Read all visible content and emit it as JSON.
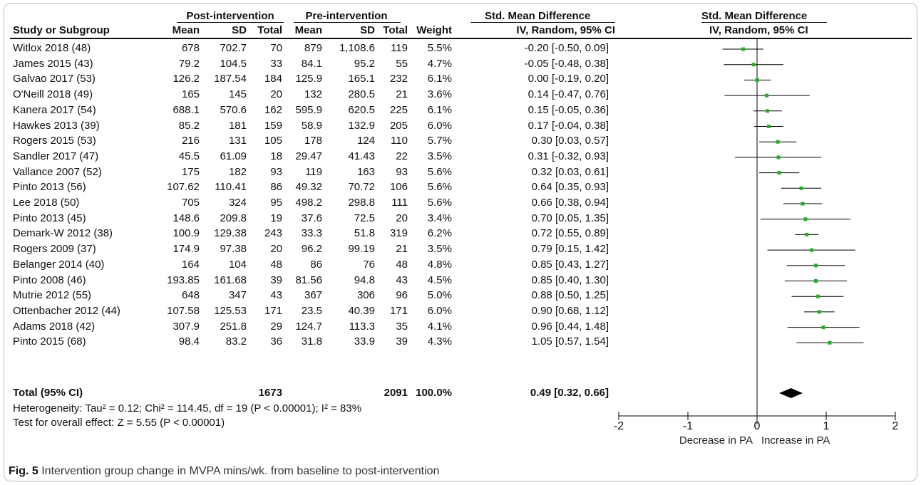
{
  "columns": {
    "post_group": "Post-intervention",
    "pre_group": "Pre-intervention",
    "smd_group": "Std. Mean Difference",
    "plot_group": "Std. Mean Difference",
    "study": "Study or Subgroup",
    "mean1": "Mean",
    "sd1": "SD",
    "total1": "Total",
    "mean2": "Mean",
    "sd2": "SD",
    "total2": "Total",
    "weight": "Weight",
    "ci": "IV, Random, 95% CI",
    "plot_ci": "IV, Random, 95% CI"
  },
  "rows": [
    {
      "study": "Witlox 2018 (48)",
      "mean1": "678",
      "sd1": "702.7",
      "n1": "70",
      "mean2": "879",
      "sd2": "1,108.6",
      "n2": "119",
      "weight": "5.5%",
      "ci": "-0.20 [-0.50, 0.09]"
    },
    {
      "study": "James 2015 (43)",
      "mean1": "79.2",
      "sd1": "104.5",
      "n1": "33",
      "mean2": "84.1",
      "sd2": "95.2",
      "n2": "55",
      "weight": "4.7%",
      "ci": "-0.05 [-0.48, 0.38]"
    },
    {
      "study": "Galvao 2017 (53)",
      "mean1": "126.2",
      "sd1": "187.54",
      "n1": "184",
      "mean2": "125.9",
      "sd2": "165.1",
      "n2": "232",
      "weight": "6.1%",
      "ci": "0.00 [-0.19, 0.20]"
    },
    {
      "study": "O'Neill 2018 (49)",
      "mean1": "165",
      "sd1": "145",
      "n1": "20",
      "mean2": "132",
      "sd2": "280.5",
      "n2": "21",
      "weight": "3.6%",
      "ci": "0.14 [-0.47, 0.76]"
    },
    {
      "study": "Kanera 2017 (54)",
      "mean1": "688.1",
      "sd1": "570.6",
      "n1": "162",
      "mean2": "595.9",
      "sd2": "620.5",
      "n2": "225",
      "weight": "6.1%",
      "ci": "0.15 [-0.05, 0.36]"
    },
    {
      "study": "Hawkes 2013 (39)",
      "mean1": "85.2",
      "sd1": "181",
      "n1": "159",
      "mean2": "58.9",
      "sd2": "132.9",
      "n2": "205",
      "weight": "6.0%",
      "ci": "0.17 [-0.04, 0.38]"
    },
    {
      "study": "Rogers 2015 (53)",
      "mean1": "216",
      "sd1": "131",
      "n1": "105",
      "mean2": "178",
      "sd2": "124",
      "n2": "110",
      "weight": "5.7%",
      "ci": "0.30 [0.03, 0.57]"
    },
    {
      "study": "Sandler 2017 (47)",
      "mean1": "45.5",
      "sd1": "61.09",
      "n1": "18",
      "mean2": "29.47",
      "sd2": "41.43",
      "n2": "22",
      "weight": "3.5%",
      "ci": "0.31 [-0.32, 0.93]"
    },
    {
      "study": "Vallance 2007 (52)",
      "mean1": "175",
      "sd1": "182",
      "n1": "93",
      "mean2": "119",
      "sd2": "163",
      "n2": "93",
      "weight": "5.6%",
      "ci": "0.32 [0.03, 0.61]"
    },
    {
      "study": "Pinto 2013 (56)",
      "mean1": "107.62",
      "sd1": "110.41",
      "n1": "86",
      "mean2": "49.32",
      "sd2": "70.72",
      "n2": "106",
      "weight": "5.6%",
      "ci": "0.64 [0.35, 0.93]"
    },
    {
      "study": "Lee 2018 (50)",
      "mean1": "705",
      "sd1": "324",
      "n1": "95",
      "mean2": "498.2",
      "sd2": "298.8",
      "n2": "111",
      "weight": "5.6%",
      "ci": "0.66 [0.38, 0.94]"
    },
    {
      "study": "Pinto 2013 (45)",
      "mean1": "148.6",
      "sd1": "209.8",
      "n1": "19",
      "mean2": "37.6",
      "sd2": "72.5",
      "n2": "20",
      "weight": "3.4%",
      "ci": "0.70 [0.05, 1.35]"
    },
    {
      "study": "Demark-W 2012 (38)",
      "mean1": "100.9",
      "sd1": "129.38",
      "n1": "243",
      "mean2": "33.3",
      "sd2": "51.8",
      "n2": "319",
      "weight": "6.2%",
      "ci": "0.72 [0.55, 0.89]"
    },
    {
      "study": "Rogers 2009 (37)",
      "mean1": "174.9",
      "sd1": "97.38",
      "n1": "20",
      "mean2": "96.2",
      "sd2": "99.19",
      "n2": "21",
      "weight": "3.5%",
      "ci": "0.79 [0.15, 1.42]"
    },
    {
      "study": "Belanger 2014 (40)",
      "mean1": "164",
      "sd1": "104",
      "n1": "48",
      "mean2": "86",
      "sd2": "76",
      "n2": "48",
      "weight": "4.8%",
      "ci": "0.85 [0.43, 1.27]"
    },
    {
      "study": "Pinto 2008 (46)",
      "mean1": "193.85",
      "sd1": "161.68",
      "n1": "39",
      "mean2": "81.56",
      "sd2": "94.8",
      "n2": "43",
      "weight": "4.5%",
      "ci": "0.85 [0.40, 1.30]"
    },
    {
      "study": "Mutrie 2012 (55)",
      "mean1": "648",
      "sd1": "347",
      "n1": "43",
      "mean2": "367",
      "sd2": "306",
      "n2": "96",
      "weight": "5.0%",
      "ci": "0.88 [0.50, 1.25]"
    },
    {
      "study": "Ottenbacher 2012 (44)",
      "mean1": "107.58",
      "sd1": "125.53",
      "n1": "171",
      "mean2": "23.5",
      "sd2": "40.39",
      "n2": "171",
      "weight": "6.0%",
      "ci": "0.90 [0.68, 1.12]"
    },
    {
      "study": "Adams 2018 (42)",
      "mean1": "307.9",
      "sd1": "251.8",
      "n1": "29",
      "mean2": "124.7",
      "sd2": "113.3",
      "n2": "35",
      "weight": "4.1%",
      "ci": "0.96 [0.44, 1.48]"
    },
    {
      "study": "Pinto 2015 (68)",
      "mean1": "98.4",
      "sd1": "83.2",
      "n1": "36",
      "mean2": "31.8",
      "sd2": "33.9",
      "n2": "39",
      "weight": "4.3%",
      "ci": "1.05 [0.57, 1.54]"
    }
  ],
  "total": {
    "label": "Total (95% CI)",
    "n1": "1673",
    "n2": "2091",
    "weight": "100.0%",
    "ci": "0.49 [0.32, 0.66]"
  },
  "heterogeneity": "Heterogeneity: Tau² = 0.12; Chi² = 114.45, df = 19 (P < 0.00001); I² = 83%",
  "overall_effect": "Test for overall effect: Z = 5.55 (P < 0.00001)",
  "caption": {
    "label": "Fig. 5",
    "text": "Intervention group change in MVPA mins/wk. from baseline to post-intervention"
  },
  "colors": {
    "marker": "#22b022",
    "diamond": "#000000",
    "lines": "#000000",
    "border": "#bfbfbf"
  },
  "chart_data": {
    "type": "forest",
    "xlim": [
      -2,
      2
    ],
    "x_ticks": [
      "-2",
      "-1",
      "0",
      "1",
      "2"
    ],
    "x_tick_values": [
      -2,
      -1,
      0,
      1,
      2
    ],
    "left_label": "Decrease in PA",
    "right_label": "Increase in PA",
    "studies": [
      {
        "est": -0.2,
        "lo": -0.5,
        "hi": 0.09
      },
      {
        "est": -0.05,
        "lo": -0.48,
        "hi": 0.38
      },
      {
        "est": 0.0,
        "lo": -0.19,
        "hi": 0.2
      },
      {
        "est": 0.14,
        "lo": -0.47,
        "hi": 0.76
      },
      {
        "est": 0.15,
        "lo": -0.05,
        "hi": 0.36
      },
      {
        "est": 0.17,
        "lo": -0.04,
        "hi": 0.38
      },
      {
        "est": 0.3,
        "lo": 0.03,
        "hi": 0.57
      },
      {
        "est": 0.31,
        "lo": -0.32,
        "hi": 0.93
      },
      {
        "est": 0.32,
        "lo": 0.03,
        "hi": 0.61
      },
      {
        "est": 0.64,
        "lo": 0.35,
        "hi": 0.93
      },
      {
        "est": 0.66,
        "lo": 0.38,
        "hi": 0.94
      },
      {
        "est": 0.7,
        "lo": 0.05,
        "hi": 1.35
      },
      {
        "est": 0.72,
        "lo": 0.55,
        "hi": 0.89
      },
      {
        "est": 0.79,
        "lo": 0.15,
        "hi": 1.42
      },
      {
        "est": 0.85,
        "lo": 0.43,
        "hi": 1.27
      },
      {
        "est": 0.85,
        "lo": 0.4,
        "hi": 1.3
      },
      {
        "est": 0.88,
        "lo": 0.5,
        "hi": 1.25
      },
      {
        "est": 0.9,
        "lo": 0.68,
        "hi": 1.12
      },
      {
        "est": 0.96,
        "lo": 0.44,
        "hi": 1.48
      },
      {
        "est": 1.05,
        "lo": 0.57,
        "hi": 1.54
      }
    ],
    "overall": {
      "est": 0.49,
      "lo": 0.32,
      "hi": 0.66
    }
  }
}
